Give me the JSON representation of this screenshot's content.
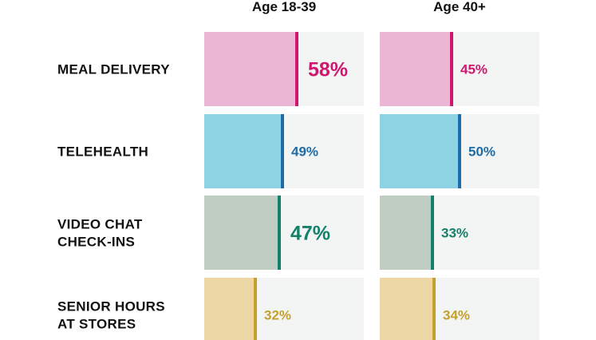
{
  "chart_data": {
    "type": "bar",
    "orientation": "horizontal",
    "title": "",
    "xlabel": "",
    "ylabel": "",
    "xlim": [
      0,
      100
    ],
    "grid": false,
    "legend": "none",
    "categories": [
      [
        "MEAL DELIVERY"
      ],
      [
        "TELEHEALTH"
      ],
      [
        "VIDEO CHAT",
        "CHECK-INS"
      ],
      [
        "SENIOR HOURS",
        "AT STORES"
      ]
    ],
    "series": [
      {
        "name": "Age 18-39",
        "values": [
          58,
          49,
          47,
          32
        ],
        "labels": [
          "58%",
          "49%",
          "47%",
          "32%"
        ]
      },
      {
        "name": "Age 40+",
        "values": [
          45,
          50,
          33,
          34
        ],
        "labels": [
          "45%",
          "50%",
          "33%",
          "34%"
        ]
      }
    ],
    "emphasized_labels": [
      [
        true,
        false,
        true,
        false
      ],
      [
        false,
        false,
        false,
        false
      ]
    ],
    "colors": {
      "track": "#f3f4f4",
      "rows": [
        {
          "fill": "#ebb6d3",
          "accent": "#d0176f"
        },
        {
          "fill": "#8dd3e3",
          "accent": "#1d6ca8"
        },
        {
          "fill": "#bfcdc3",
          "accent": "#14806a"
        },
        {
          "fill": "#edd7a4",
          "accent": "#c5a12c"
        }
      ]
    }
  }
}
